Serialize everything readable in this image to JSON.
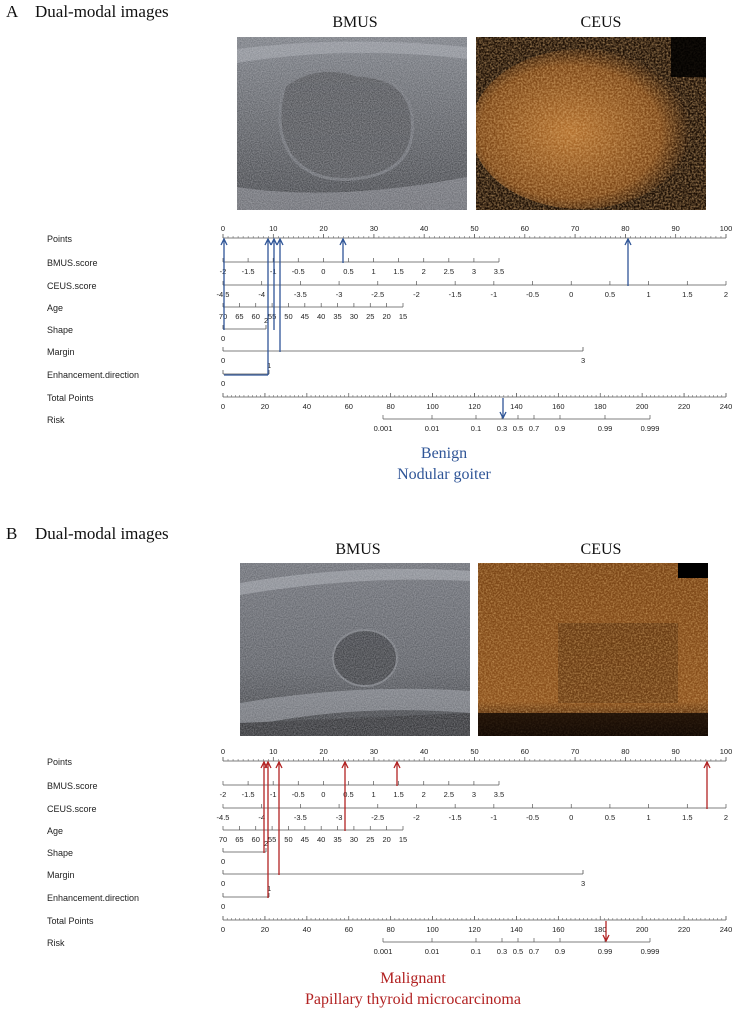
{
  "colors": {
    "panel_a_accent": "#2f5597",
    "panel_b_accent": "#b22222",
    "axis": "#555555",
    "ceus_base": "#2a1608",
    "ceus_glow": "#c8823a",
    "bmus_base": "#3a3a3a"
  },
  "panels": [
    {
      "letter": "A",
      "title": "Dual-modal images",
      "image_labels": {
        "bmus": "BMUS",
        "ceus": "CEUS"
      },
      "caption_line1": "Benign",
      "caption_line2": "Nodular goiter"
    },
    {
      "letter": "B",
      "title": "Dual-modal images",
      "image_labels": {
        "bmus": "BMUS",
        "ceus": "CEUS"
      },
      "caption_line1": "Malignant",
      "caption_line2": "Papillary thyroid microcarcinoma"
    }
  ],
  "nomogram": {
    "row_labels": [
      "Points",
      "BMUS.score",
      "CEUS.score",
      "Age",
      "Shape",
      "Margin",
      "Enhancement.direction",
      "Total Points",
      "Risk"
    ],
    "points_ticks": [
      "0",
      "10",
      "20",
      "30",
      "40",
      "50",
      "60",
      "70",
      "80",
      "90",
      "100"
    ],
    "bmus_ticks": [
      "-2",
      "-1.5",
      "-1",
      "-0.5",
      "0",
      "0.5",
      "1",
      "1.5",
      "2",
      "2.5",
      "3",
      "3.5"
    ],
    "ceus_ticks": [
      "-4.5",
      "-4",
      "-3.5",
      "-3",
      "-2.5",
      "-2",
      "-1.5",
      "-1",
      "-0.5",
      "0",
      "0.5",
      "1",
      "1.5",
      "2"
    ],
    "age_ticks": [
      "70",
      "65",
      "60",
      "55",
      "50",
      "45",
      "40",
      "35",
      "30",
      "25",
      "20",
      "15"
    ],
    "shape_ticks": [
      "0",
      "2"
    ],
    "margin_ticks": [
      "0",
      "3"
    ],
    "enh_ticks": [
      "0",
      "1"
    ],
    "total_ticks": [
      "0",
      "20",
      "40",
      "60",
      "80",
      "100",
      "120",
      "140",
      "160",
      "180",
      "200",
      "220",
      "240"
    ],
    "risk_ticks": [
      "0.001",
      "0.01",
      "0.1",
      "0.3",
      "0.5",
      "0.7",
      "0.9",
      "0.99",
      "0.999"
    ]
  }
}
